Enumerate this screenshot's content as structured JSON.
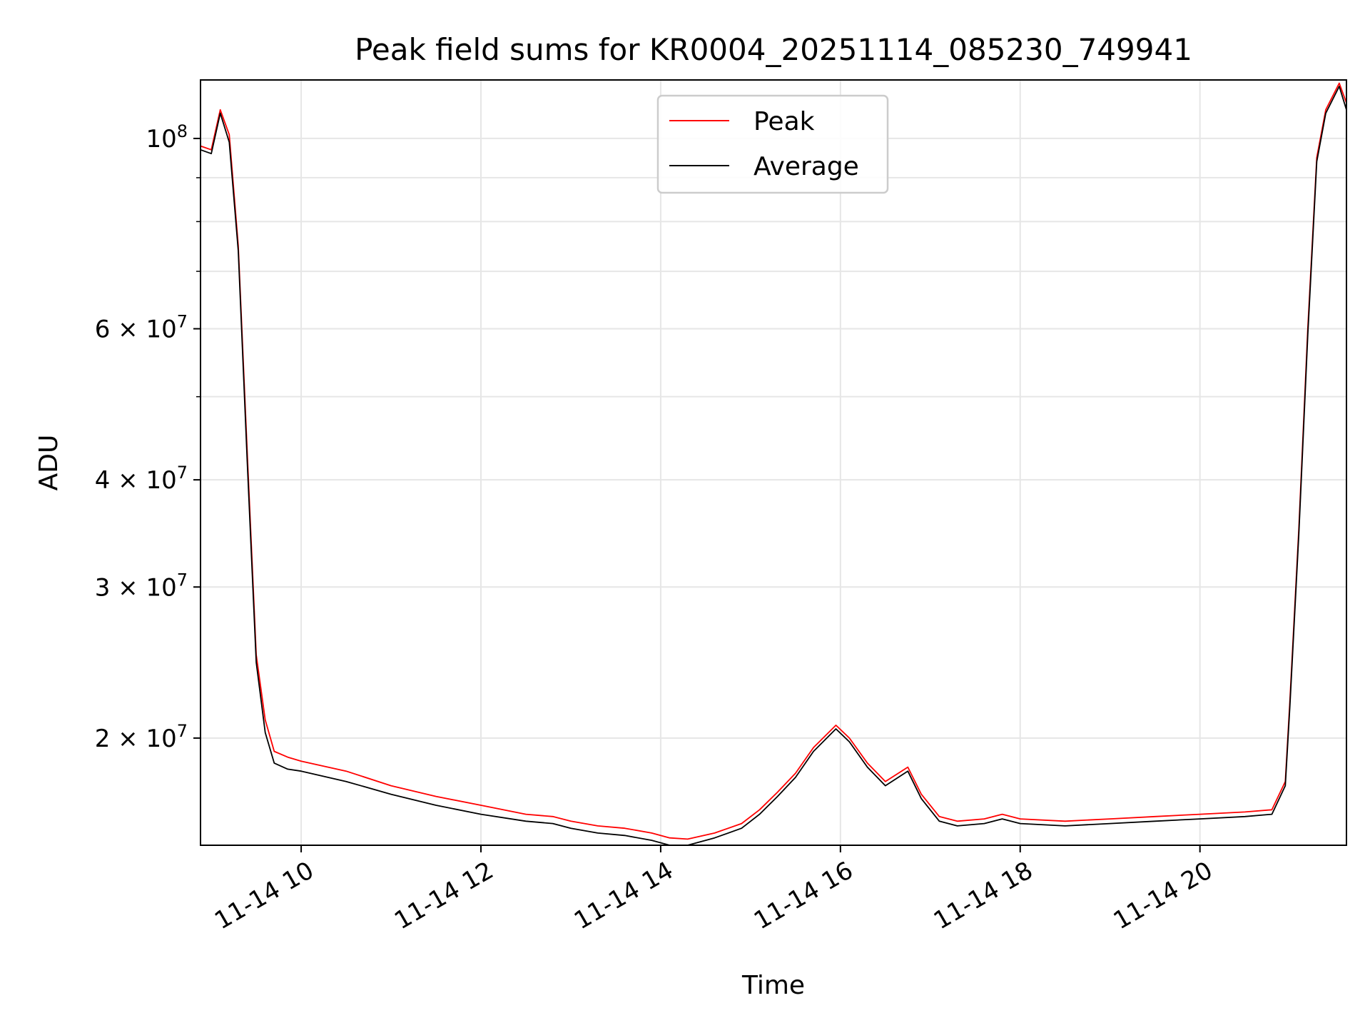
{
  "chart_data": {
    "type": "line",
    "title": "Peak field sums for KR0004_20251114_085230_749941",
    "xlabel": "Time",
    "ylabel": "ADU",
    "x_unit": "hours (day 11-14)",
    "xlim": [
      8.88,
      21.63
    ],
    "ylim": [
      15000000,
      117000000
    ],
    "y_scale": "log",
    "grid": true,
    "legend_position": "top-center",
    "x_ticks": [
      {
        "value": 10,
        "label": "11-14 10"
      },
      {
        "value": 12,
        "label": "11-14 12"
      },
      {
        "value": 14,
        "label": "11-14 14"
      },
      {
        "value": 16,
        "label": "11-14 16"
      },
      {
        "value": 18,
        "label": "11-14 18"
      },
      {
        "value": 20,
        "label": "11-14 20"
      }
    ],
    "y_ticks": [
      {
        "value": 100000000,
        "base": "10",
        "exp": "8"
      },
      {
        "value": 60000000,
        "base": "6 × 10",
        "exp": "7"
      },
      {
        "value": 40000000,
        "base": "4 × 10",
        "exp": "7"
      },
      {
        "value": 30000000,
        "base": "3 × 10",
        "exp": "7"
      },
      {
        "value": 20000000,
        "base": "2 × 10",
        "exp": "7"
      }
    ],
    "y_minor_ticks": [
      50000000,
      70000000,
      80000000,
      90000000
    ],
    "series": [
      {
        "name": "Peak",
        "color": "#ff0000",
        "x": [
          8.88,
          9.0,
          9.1,
          9.2,
          9.3,
          9.4,
          9.5,
          9.6,
          9.7,
          9.85,
          10.0,
          10.5,
          11.0,
          11.5,
          12.0,
          12.5,
          12.8,
          13.0,
          13.3,
          13.6,
          13.9,
          14.1,
          14.3,
          14.6,
          14.9,
          15.1,
          15.3,
          15.5,
          15.7,
          15.95,
          16.1,
          16.3,
          16.5,
          16.75,
          16.9,
          17.1,
          17.3,
          17.6,
          17.8,
          18.0,
          18.5,
          19.0,
          19.5,
          20.0,
          20.5,
          20.8,
          20.95,
          21.0,
          21.1,
          21.2,
          21.3,
          21.4,
          21.55,
          21.63
        ],
        "y": [
          98000000,
          97000000,
          108000000,
          101000000,
          75000000,
          43000000,
          25000000,
          21000000,
          19300000,
          19000000,
          18800000,
          18300000,
          17600000,
          17100000,
          16700000,
          16300000,
          16200000,
          16000000,
          15800000,
          15700000,
          15500000,
          15300000,
          15250000,
          15500000,
          15900000,
          16500000,
          17300000,
          18200000,
          19500000,
          20700000,
          20000000,
          18700000,
          17800000,
          18500000,
          17200000,
          16200000,
          16000000,
          16100000,
          16300000,
          16100000,
          16000000,
          16100000,
          16200000,
          16300000,
          16400000,
          16500000,
          17800000,
          22000000,
          35000000,
          60000000,
          95000000,
          108000000,
          116000000,
          110000000
        ]
      },
      {
        "name": "Average",
        "color": "#000000",
        "x": [
          8.88,
          9.0,
          9.1,
          9.2,
          9.3,
          9.4,
          9.5,
          9.6,
          9.7,
          9.85,
          10.0,
          10.5,
          11.0,
          11.5,
          12.0,
          12.5,
          12.8,
          13.0,
          13.3,
          13.6,
          13.9,
          14.1,
          14.3,
          14.6,
          14.9,
          15.1,
          15.3,
          15.5,
          15.7,
          15.95,
          16.1,
          16.3,
          16.5,
          16.75,
          16.9,
          17.1,
          17.3,
          17.6,
          17.8,
          18.0,
          18.5,
          19.0,
          19.5,
          20.0,
          20.5,
          20.8,
          20.95,
          21.0,
          21.1,
          21.2,
          21.3,
          21.4,
          21.55,
          21.63
        ],
        "y": [
          97000000,
          96000000,
          107000000,
          99000000,
          74000000,
          42000000,
          24500000,
          20300000,
          18700000,
          18400000,
          18300000,
          17800000,
          17200000,
          16700000,
          16300000,
          16000000,
          15900000,
          15700000,
          15500000,
          15400000,
          15200000,
          15000000,
          15000000,
          15300000,
          15700000,
          16300000,
          17100000,
          18000000,
          19300000,
          20500000,
          19800000,
          18500000,
          17600000,
          18300000,
          17000000,
          16000000,
          15800000,
          15900000,
          16100000,
          15900000,
          15800000,
          15900000,
          16000000,
          16100000,
          16200000,
          16300000,
          17600000,
          21700000,
          34500000,
          59000000,
          94000000,
          107000000,
          115000000,
          108000000
        ]
      }
    ]
  }
}
